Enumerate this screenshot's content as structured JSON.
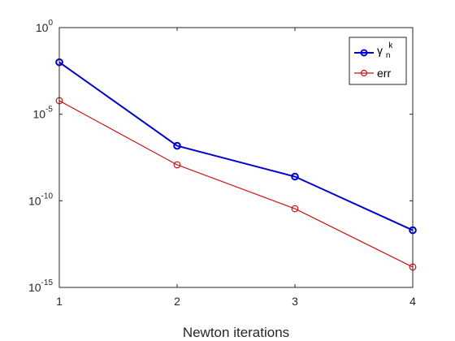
{
  "chart_data": {
    "type": "line",
    "xlabel": "Newton iterations",
    "ylabel": "",
    "title": "",
    "x": [
      1,
      2,
      3,
      4
    ],
    "xlim": [
      1,
      4
    ],
    "ylim": [
      1e-15,
      1
    ],
    "yscale": "log",
    "xticks": [
      "1",
      "2",
      "3",
      "4"
    ],
    "yticks": [
      {
        "value": 1.0,
        "base": "10",
        "exp": "0"
      },
      {
        "value": 1e-05,
        "base": "10",
        "exp": "-5"
      },
      {
        "value": 1e-10,
        "base": "10",
        "exp": "-10"
      },
      {
        "value": 1e-15,
        "base": "10",
        "exp": "-15"
      }
    ],
    "grid": false,
    "legend_position": "top-right",
    "series": [
      {
        "name": "γ",
        "name_sup": "k",
        "name_sub": "n",
        "color": "#0000cc",
        "marker": "circle",
        "values": [
          0.01,
          1.5e-07,
          2.5e-09,
          2e-12
        ]
      },
      {
        "name": "err",
        "color": "#cc1111",
        "marker": "circle",
        "values": [
          6e-05,
          1.2e-08,
          3.5e-11,
          1.5e-14
        ]
      }
    ]
  }
}
